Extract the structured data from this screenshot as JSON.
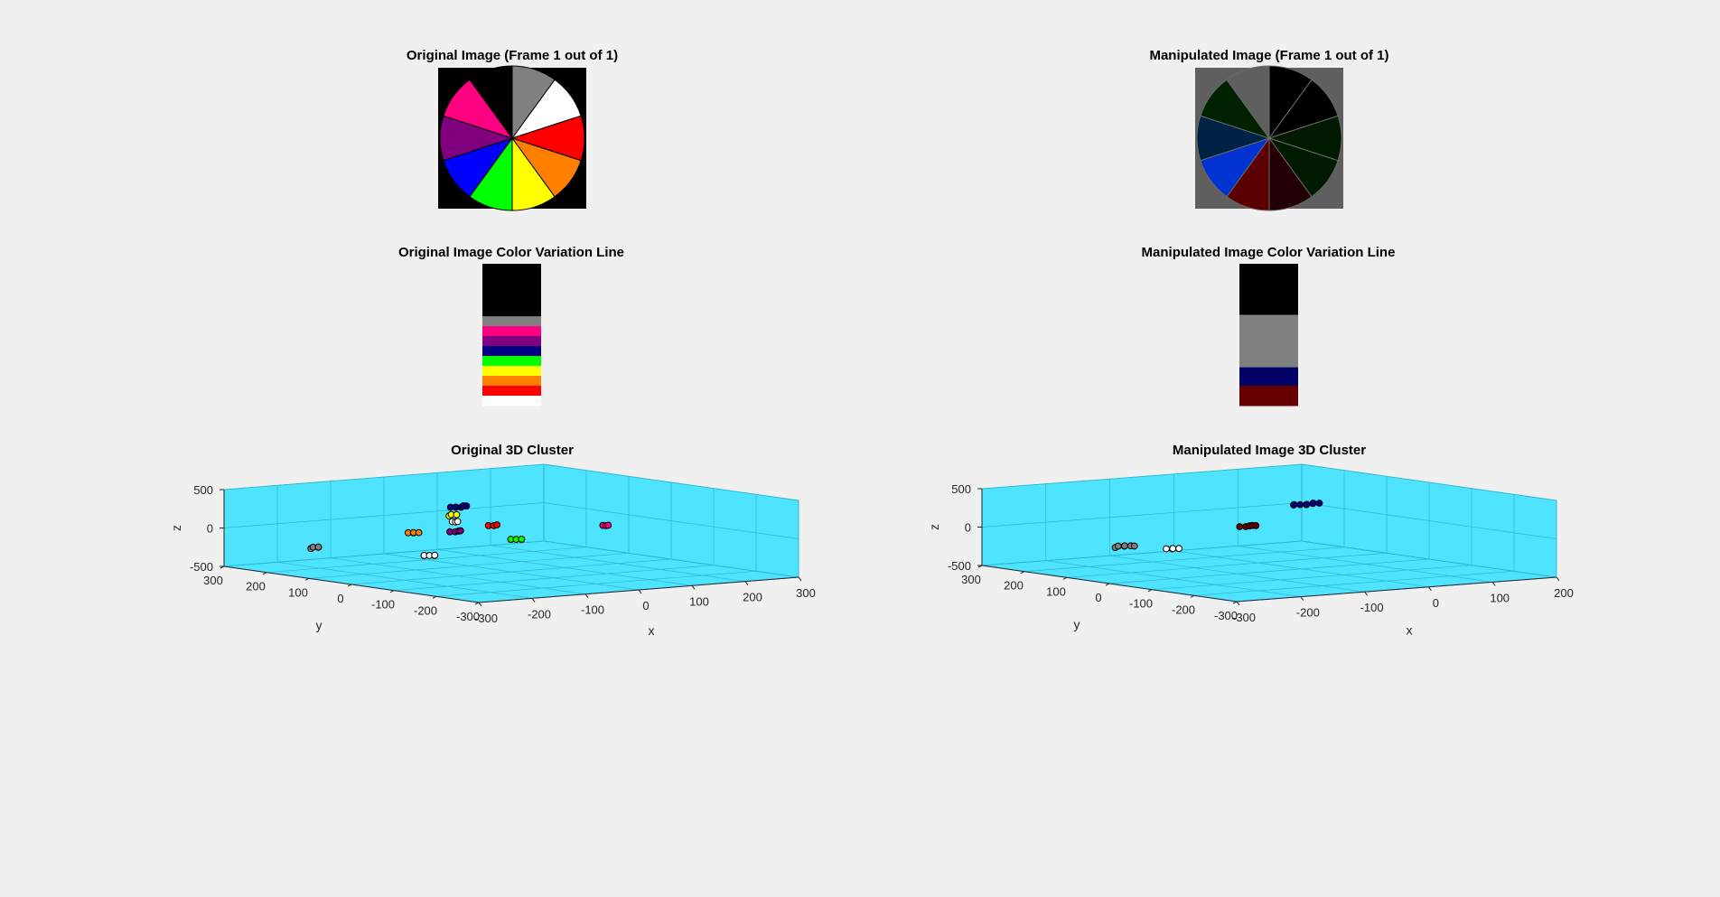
{
  "figure": {
    "background": "#f0f0f0",
    "axes_pane_color": "#4ee3ff"
  },
  "chart_data": [
    {
      "type": "image",
      "title": "Original Image (Frame 1 out of 1)",
      "background": "#000000",
      "wedges": [
        {
          "color": "#808080",
          "start": 0,
          "end": 36
        },
        {
          "color": "#ffffff",
          "start": 36,
          "end": 72
        },
        {
          "color": "#ff0000",
          "start": 72,
          "end": 108
        },
        {
          "color": "#ff8000",
          "start": 108,
          "end": 144
        },
        {
          "color": "#ffff00",
          "start": 144,
          "end": 180
        },
        {
          "color": "#00ff00",
          "start": 180,
          "end": 216
        },
        {
          "color": "#0000ff",
          "start": 216,
          "end": 252
        },
        {
          "color": "#800080",
          "start": 252,
          "end": 288
        },
        {
          "color": "#ff0080",
          "start": 288,
          "end": 324
        },
        {
          "color": "#000000",
          "start": 324,
          "end": 360
        }
      ]
    },
    {
      "type": "image",
      "title": "Manipulated Image (Frame 1 out of 1)",
      "background": "#5f5f5f",
      "wedges": [
        {
          "color": "#000000",
          "start": 0,
          "end": 36
        },
        {
          "color": "#000000",
          "start": 36,
          "end": 72
        },
        {
          "color": "#001a00",
          "start": 72,
          "end": 108
        },
        {
          "color": "#001a00",
          "start": 108,
          "end": 144
        },
        {
          "color": "#220006",
          "start": 144,
          "end": 180
        },
        {
          "color": "#5a0000",
          "start": 180,
          "end": 216
        },
        {
          "color": "#0033d0",
          "start": 216,
          "end": 252
        },
        {
          "color": "#002244",
          "start": 252,
          "end": 288
        },
        {
          "color": "#002200",
          "start": 288,
          "end": 324
        },
        {
          "color": "#5f5f5f",
          "start": 324,
          "end": 360
        }
      ]
    },
    {
      "type": "color_bar",
      "title": "Original Image Color Variation Line",
      "segments": [
        {
          "color": "#000000",
          "fraction": 0.37
        },
        {
          "color": "#808080",
          "fraction": 0.07
        },
        {
          "color": "#ff0080",
          "fraction": 0.07
        },
        {
          "color": "#800080",
          "fraction": 0.07
        },
        {
          "color": "#000080",
          "fraction": 0.07
        },
        {
          "color": "#00ff00",
          "fraction": 0.07
        },
        {
          "color": "#ffff00",
          "fraction": 0.07
        },
        {
          "color": "#ff8000",
          "fraction": 0.07
        },
        {
          "color": "#ff0000",
          "fraction": 0.07
        },
        {
          "color": "#ffffff",
          "fraction": 0.07
        }
      ]
    },
    {
      "type": "color_bar",
      "title": "Manipulated Image Color Variation Line",
      "segments": [
        {
          "color": "#000000",
          "fraction": 0.36
        },
        {
          "color": "#808080",
          "fraction": 0.37
        },
        {
          "color": "#000066",
          "fraction": 0.13
        },
        {
          "color": "#660000",
          "fraction": 0.14
        }
      ]
    },
    {
      "type": "scatter3d",
      "title": "Original 3D Cluster",
      "xlabel": "x",
      "ylabel": "y",
      "zlabel": "z",
      "xlim": [
        -300,
        300
      ],
      "ylim": [
        -300,
        300
      ],
      "zlim": [
        -500,
        500
      ],
      "xticks": [
        -300,
        -200,
        -100,
        0,
        100,
        200,
        300
      ],
      "yticks": [
        -300,
        -200,
        -100,
        0,
        100,
        200,
        300
      ],
      "zticks": [
        -500,
        0,
        500
      ],
      "grid": true,
      "clusters": [
        {
          "color": "#808080",
          "x": -218,
          "y": 188,
          "z": -212,
          "n": 4
        },
        {
          "color": "#ff8000",
          "x": -112,
          "y": 90,
          "z": 2,
          "n": 4
        },
        {
          "color": "#800080",
          "x": -60,
          "y": 55,
          "z": 16,
          "n": 4
        },
        {
          "color": "#ffffff",
          "x": -250,
          "y": -121,
          "z": -55,
          "n": 5
        },
        {
          "color": "#ffffff",
          "x": -86,
          "y": 24,
          "z": 183,
          "n": 3
        },
        {
          "color": "#ffff00",
          "x": -86,
          "y": 32,
          "z": 261,
          "n": 3
        },
        {
          "color": "#000080",
          "x": -72,
          "y": 33,
          "z": 360,
          "n": 6
        },
        {
          "color": "#ff0000",
          "x": -25,
          "y": 12,
          "z": 110,
          "n": 3
        },
        {
          "color": "#00ff00",
          "x": -25,
          "y": -43,
          "z": -30,
          "n": 5
        },
        {
          "color": "#ff0080",
          "x": 120,
          "y": -72,
          "z": 96,
          "n": 3
        }
      ]
    },
    {
      "type": "scatter3d",
      "title": "Manipulated Image 3D Cluster",
      "xlabel": "x",
      "ylabel": "y",
      "zlabel": "z",
      "xlim": [
        -300,
        200
      ],
      "ylim": [
        -300,
        300
      ],
      "zlim": [
        -500,
        500
      ],
      "xticks": [
        -300,
        -200,
        -100,
        0,
        100,
        200
      ],
      "yticks": [
        -300,
        -200,
        -100,
        0,
        100,
        200,
        300
      ],
      "zticks": [
        -500,
        0,
        500
      ],
      "grid": true,
      "clusters": [
        {
          "color": "#808080",
          "x": -166,
          "y": 166,
          "z": -228,
          "n": 6
        },
        {
          "color": "#ffffff",
          "x": -243,
          "y": -63,
          "z": -30,
          "n": 4
        },
        {
          "color": "#660000",
          "x": -43,
          "y": 59,
          "z": 39,
          "n": 5
        },
        {
          "color": "#000080",
          "x": 14,
          "y": 10,
          "z": 326,
          "n": 8
        }
      ]
    }
  ]
}
